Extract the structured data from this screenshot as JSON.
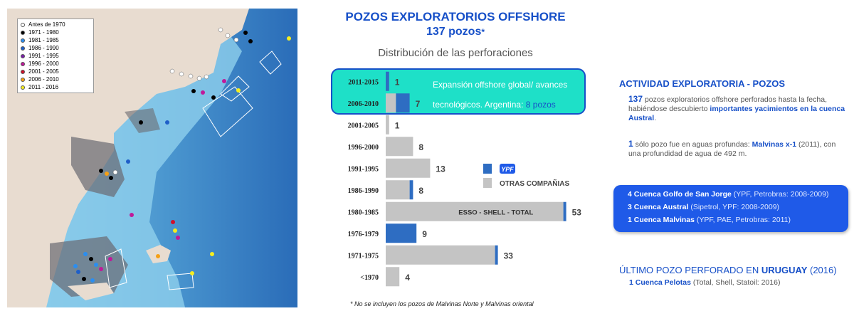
{
  "map": {
    "legend": [
      {
        "label": "Antes de 1970",
        "color": "#ffffff"
      },
      {
        "label": "1971 - 1980",
        "color": "#000000"
      },
      {
        "label": "1981 - 1985",
        "color": "#2b8ef0"
      },
      {
        "label": "1986 - 1990",
        "color": "#1f5fc8"
      },
      {
        "label": "1991 - 1995",
        "color": "#7a1fa8"
      },
      {
        "label": "1996 - 2000",
        "color": "#c0199a"
      },
      {
        "label": "2001 - 2005",
        "color": "#d0102c"
      },
      {
        "label": "2006 - 2010",
        "color": "#f5a015"
      },
      {
        "label": "2011 - 2016",
        "color": "#f5ee20"
      }
    ]
  },
  "header": {
    "title": "POZOS EXPLORATORIOS OFFSHORE",
    "count_line": "137 pozos",
    "asterisk": "*",
    "subtitle": "Distribución de las perforaciones"
  },
  "chart_data": {
    "type": "bar",
    "orientation": "horizontal",
    "stacked": true,
    "categories": [
      "2011-2015",
      "2006-2010",
      "2001-2005",
      "1996-2000",
      "1991-1995",
      "1986-1990",
      "1980-1985",
      "1976-1979",
      "1971-1975",
      "<1970"
    ],
    "totals": [
      1,
      7,
      1,
      8,
      13,
      8,
      53,
      9,
      33,
      4
    ],
    "series": [
      {
        "name": "YPF",
        "color": "#2e6dc2",
        "values": [
          1,
          4,
          0,
          0,
          0,
          1,
          1,
          9,
          1,
          0
        ]
      },
      {
        "name": "OTRAS COMPAÑIAS",
        "color": "#c4c4c4",
        "values": [
          0,
          3,
          1,
          8,
          13,
          7,
          52,
          0,
          32,
          4
        ]
      }
    ],
    "bar_annotation": {
      "category": "1980-1985",
      "text": "ESSO - SHELL - TOTAL"
    },
    "highlight": {
      "categories": [
        "2011-2015",
        "2006-2010"
      ],
      "text": "Expansión offshore global/ avances tecnológicos. Argentina:",
      "value_text": "8 pozos"
    },
    "legend_position": "right"
  },
  "footnote": "* No se incluyen los pozos de Malvinas Norte y Malvinas oriental",
  "panel": {
    "title": "ACTIVIDAD EXPLORATORIA - POZOS",
    "p1_num": "137",
    "p1_text": " pozos exploratorios offshore perforados hasta la fecha, habiéndose descubierto ",
    "p1_hl": "importantes yacimientos en la cuenca Austral",
    "p1_end": ".",
    "p2_num": "1",
    "p2_text": " sólo pozo fue en aguas profundas: ",
    "p2_hl": "Malvinas x-1",
    "p2_end": " (2011), con una profundidad de agua de 492 m.",
    "basins": [
      {
        "count": "4",
        "name": "Cuenca Golfo de San Jorge",
        "detail": " (YPF, Petrobras: 2008-2009)"
      },
      {
        "count": "3",
        "name": "Cuenca Austral",
        "detail": " (Sipetrol, YPF:  2008-2009)"
      },
      {
        "count": "1",
        "name": "Cuenca Malvinas",
        "detail": " (YPF, PAE, Petrobras: 2011)"
      }
    ],
    "uruguay_prefix": "ÚLTIMO POZO PERFORADO EN ",
    "uruguay_country": "URUGUAY",
    "uruguay_suffix": " (2016)",
    "uruguay_count": "1",
    "uruguay_basin": "Cuenca Pelotas",
    "uruguay_detail": " (Total, Shell, Statoil: 2016)"
  }
}
